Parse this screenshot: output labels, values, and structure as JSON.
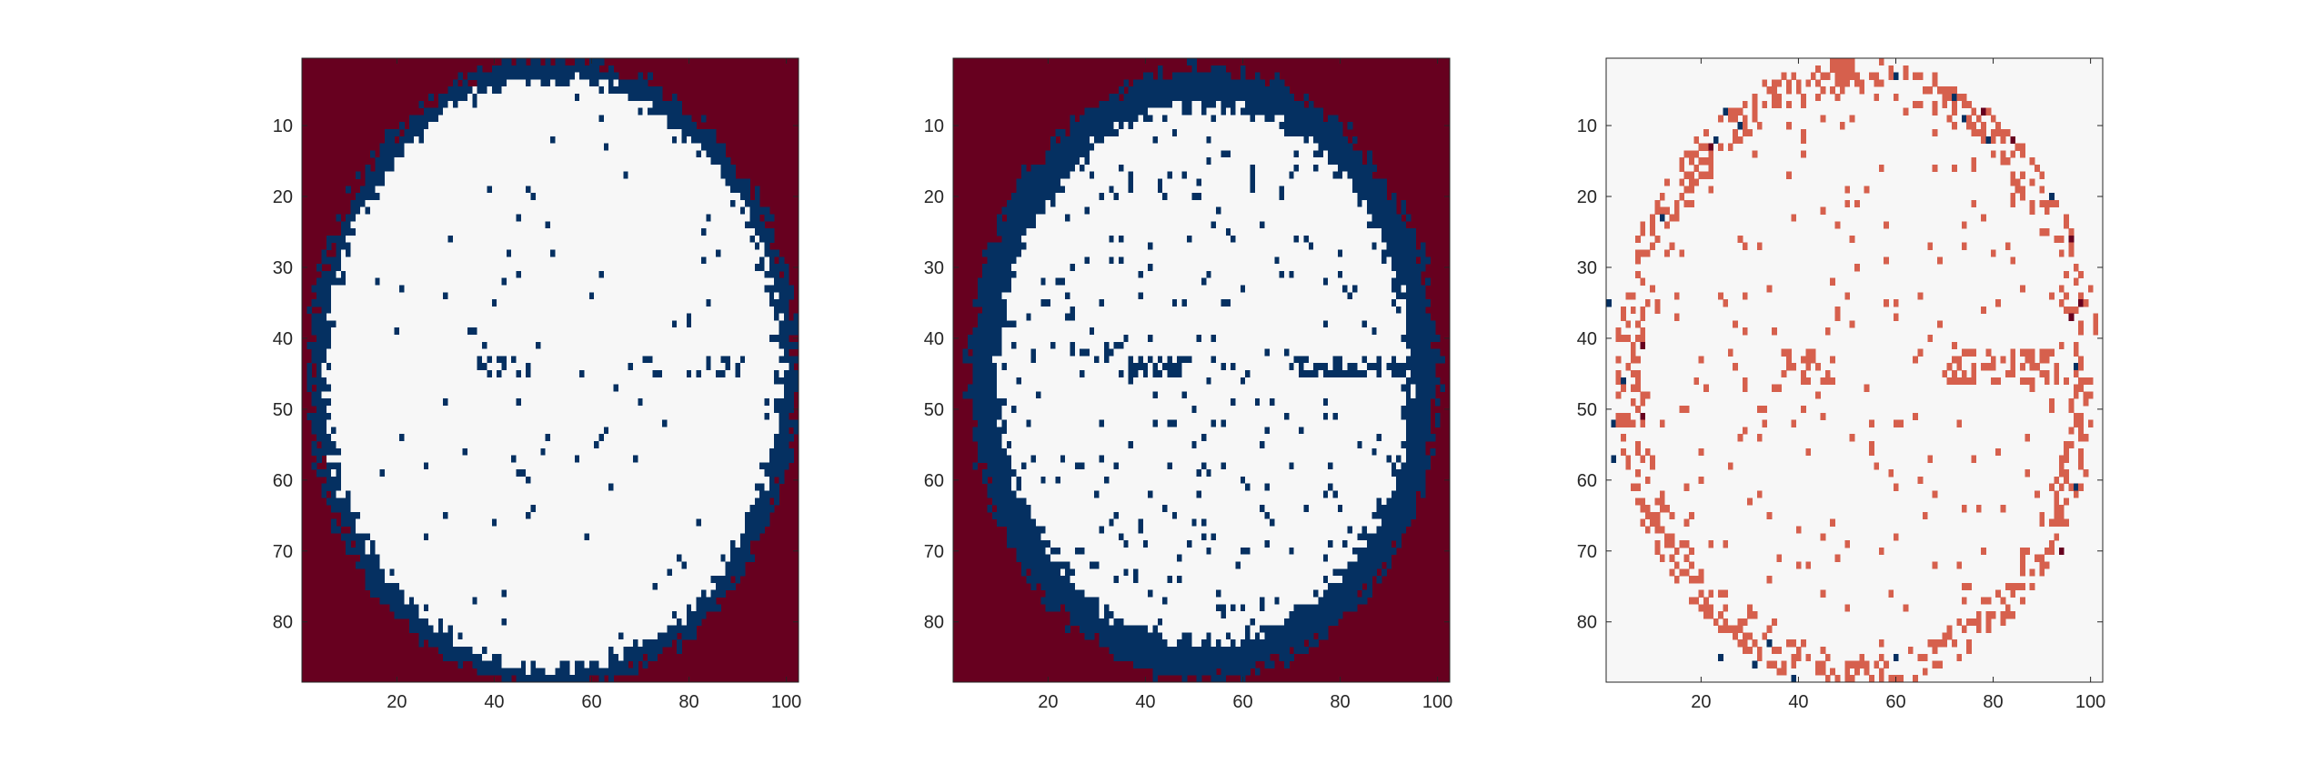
{
  "chart_data": [
    {
      "type": "heatmap",
      "title": "",
      "xlabel": "",
      "ylabel": "",
      "grid": false,
      "colorbar": false,
      "colors": {
        "outside": "#67001f",
        "boundary": "#053061",
        "inside": "#f7f7f7"
      },
      "xlim": [
        0.5,
        102.5
      ],
      "ylim": [
        0.5,
        88.5
      ],
      "y_direction": "reversed",
      "xticks": [
        20,
        40,
        60,
        80,
        100
      ],
      "yticks": [
        10,
        20,
        30,
        40,
        50,
        60,
        70,
        80
      ],
      "ellipse_region": {
        "center": [
          52,
          45
        ],
        "radius_x": 50,
        "radius_y": 44.5,
        "boundary_width": 3
      }
    },
    {
      "type": "heatmap",
      "title": "",
      "xlabel": "",
      "ylabel": "",
      "grid": false,
      "colorbar": false,
      "colors": {
        "outside": "#67001f",
        "boundary": "#053061",
        "inside": "#f7f7f7"
      },
      "xlim": [
        0.5,
        102.5
      ],
      "ylim": [
        0.5,
        88.5
      ],
      "y_direction": "reversed",
      "xticks": [
        20,
        40,
        60,
        80,
        100
      ],
      "yticks": [
        10,
        20,
        30,
        40,
        50,
        60,
        70,
        80
      ],
      "ellipse_region": {
        "center": [
          52,
          45
        ],
        "radius_x": 48,
        "radius_y": 43,
        "boundary_width": 4
      }
    },
    {
      "type": "heatmap",
      "title": "",
      "xlabel": "",
      "ylabel": "",
      "grid": false,
      "colorbar": false,
      "colors": {
        "background": "#f7f7f7",
        "difference": "#d6604d",
        "strong_negative": "#053061",
        "strong_positive": "#67001f"
      },
      "xlim": [
        0.5,
        102.5
      ],
      "ylim": [
        0.5,
        88.5
      ],
      "y_direction": "reversed",
      "xticks": [
        20,
        40,
        60,
        80,
        100
      ],
      "yticks": [
        10,
        20,
        30,
        40,
        50,
        60,
        70,
        80
      ],
      "ellipse_region": {
        "center": [
          52,
          45
        ],
        "radius_x": 49,
        "radius_y": 43.5
      }
    }
  ]
}
